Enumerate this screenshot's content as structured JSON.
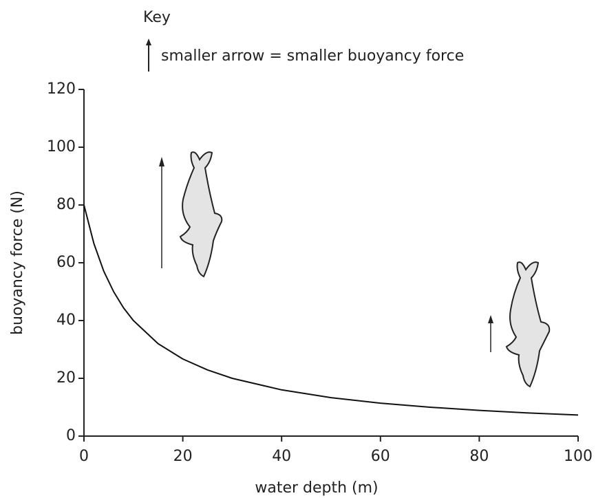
{
  "chart_data": {
    "type": "line",
    "key_title": "Key",
    "key_text": "smaller arrow = smaller buoyancy force",
    "x_label": "water depth (m)",
    "y_label": "buoyancy force (N)",
    "x": [
      0,
      2,
      4,
      6,
      8,
      10,
      15,
      20,
      25,
      30,
      40,
      50,
      60,
      70,
      80,
      90,
      100
    ],
    "series": [
      {
        "color": "#111111",
        "values": [
          80,
          66.7,
          57.1,
          50,
          44.4,
          40,
          32,
          26.7,
          22.9,
          20,
          16,
          13.3,
          11.4,
          10,
          8.9,
          8,
          7.3
        ]
      }
    ],
    "xlim": [
      0,
      100
    ],
    "xticks": [
      0,
      20,
      40,
      60,
      80,
      100
    ],
    "ylim": [
      0,
      120
    ],
    "yticks": [
      0,
      20,
      40,
      60,
      80,
      100,
      120
    ],
    "grid": false
  }
}
